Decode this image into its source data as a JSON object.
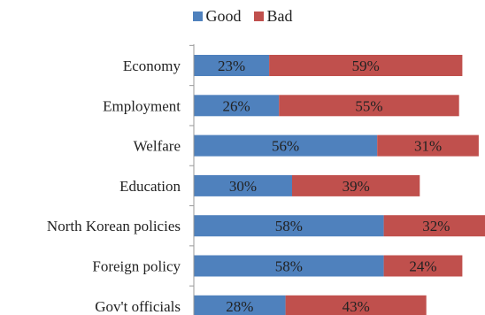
{
  "chart_data": {
    "type": "bar",
    "orientation": "horizontal",
    "stacked": true,
    "title": "",
    "xlabel": "",
    "ylabel": "",
    "legend_position": "top",
    "categories": [
      "Economy",
      "Employment",
      "Welfare",
      "Education",
      "North Korean policies",
      "Foreign policy",
      "Gov't officials"
    ],
    "series": [
      {
        "name": "Good",
        "color": "#4f81bd",
        "values": [
          23,
          26,
          56,
          30,
          58,
          58,
          28
        ],
        "labels": [
          "23%",
          "26%",
          "56%",
          "30%",
          "58%",
          "58%",
          "28%"
        ]
      },
      {
        "name": "Bad",
        "color": "#c0504d",
        "values": [
          59,
          55,
          31,
          39,
          32,
          24,
          43
        ],
        "labels": [
          "59%",
          "55%",
          "31%",
          "39%",
          "32%",
          "24%",
          "43%"
        ]
      }
    ]
  }
}
